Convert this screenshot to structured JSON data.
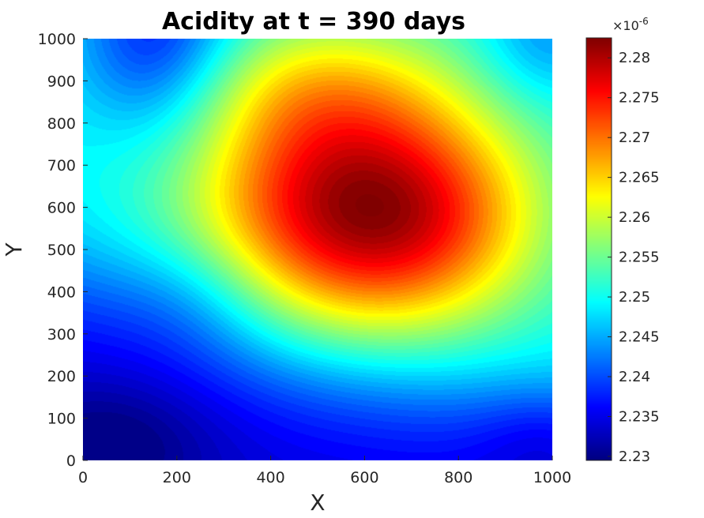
{
  "chart_data": {
    "type": "heatmap",
    "title": "Acidity at t = 390 days",
    "xlabel": "X",
    "ylabel": "Y",
    "xlim": [
      0,
      1000
    ],
    "ylim": [
      0,
      1000
    ],
    "x_ticks": [
      "0",
      "200",
      "400",
      "600",
      "800",
      "1000"
    ],
    "y_ticks": [
      "0",
      "100",
      "200",
      "300",
      "400",
      "500",
      "600",
      "700",
      "800",
      "900",
      "1000"
    ],
    "colormap": "jet",
    "colorbar": {
      "range": [
        2.2295,
        2.2825
      ],
      "ticks": [
        "2.23",
        "2.235",
        "2.24",
        "2.245",
        "2.25",
        "2.255",
        "2.26",
        "2.265",
        "2.27",
        "2.275",
        "2.28"
      ],
      "exponent_base": "×10",
      "exponent": "-6"
    },
    "features": [
      {
        "kind": "maximum",
        "x": 575,
        "y": 600,
        "value": 2.2825
      },
      {
        "kind": "minimum",
        "x": 30,
        "y": 20,
        "value": 2.2295
      },
      {
        "kind": "local-low",
        "x": 160,
        "y": 1000,
        "value": 2.252
      },
      {
        "kind": "local-low",
        "x": 1000,
        "y": 60,
        "value": 2.247
      },
      {
        "kind": "local-low",
        "x": 940,
        "y": 980,
        "value": 2.258
      }
    ],
    "grid": false
  }
}
